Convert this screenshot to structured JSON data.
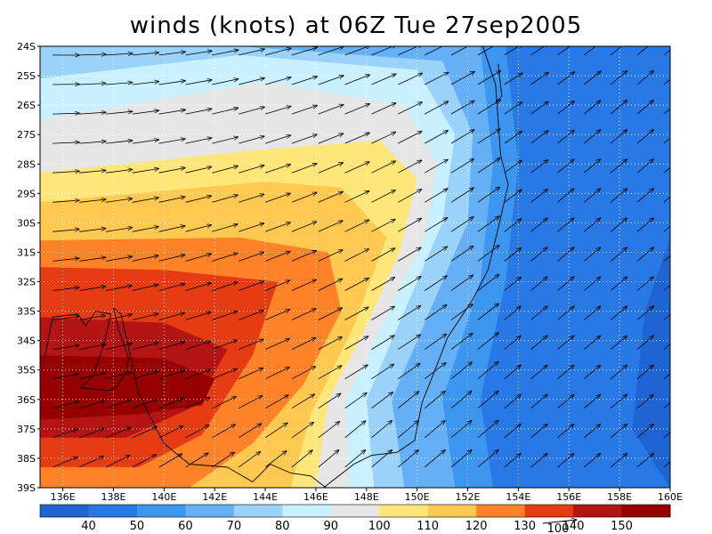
{
  "title": "winds (knots) at 06Z Tue 27sep2005",
  "chart_data": {
    "type": "heatmap",
    "variable": "wind speed",
    "units": "knots",
    "x_ticks": [
      "136E",
      "138E",
      "140E",
      "142E",
      "144E",
      "146E",
      "148E",
      "150E",
      "152E",
      "154E",
      "156E",
      "158E",
      "160E"
    ],
    "y_ticks": [
      "24S",
      "25S",
      "26S",
      "27S",
      "28S",
      "29S",
      "30S",
      "31S",
      "32S",
      "33S",
      "34S",
      "35S",
      "36S",
      "37S",
      "38S",
      "39S"
    ],
    "lon_range": [
      135.1,
      160
    ],
    "lat_range": [
      -39,
      -24
    ],
    "grid": "dotted",
    "colorbar": {
      "labels": [
        "40",
        "50",
        "60",
        "70",
        "80",
        "90",
        "100",
        "110",
        "120",
        "130",
        "140",
        "150"
      ],
      "colors": [
        "#1e64d2",
        "#2878e6",
        "#3c96f0",
        "#64aff5",
        "#9bd2fa",
        "#c8f0ff",
        "#e6e6e6",
        "#ffe678",
        "#ffc850",
        "#ff8228",
        "#e63c14",
        "#b41414",
        "#960000"
      ]
    },
    "vector_reference": {
      "label": "100",
      "speed_knots": 100
    },
    "contours_lon_lat": [
      {
        "level": 0,
        "points": [
          [
            135,
            -24
          ],
          [
            160,
            -24
          ],
          [
            160,
            -39
          ],
          [
            135,
            -39
          ]
        ]
      },
      {
        "level": 1,
        "points": [
          [
            153.5,
            -24
          ],
          [
            160,
            -24
          ],
          [
            160,
            -30.5
          ],
          [
            159,
            -33
          ],
          [
            158.5,
            -37
          ],
          [
            160,
            -39
          ],
          [
            153,
            -39
          ],
          [
            152.5,
            -36
          ],
          [
            153.5,
            -32
          ],
          [
            154,
            -28
          ]
        ]
      },
      {
        "level": 2,
        "points": [
          [
            135,
            -24
          ],
          [
            153.5,
            -24
          ],
          [
            154,
            -28
          ],
          [
            153.5,
            -32
          ],
          [
            152.5,
            -36
          ],
          [
            153,
            -39
          ],
          [
            135,
            -39
          ]
        ]
      },
      {
        "level": 3,
        "points": [
          [
            135,
            -24
          ],
          [
            152.5,
            -24
          ],
          [
            153,
            -28
          ],
          [
            152.5,
            -32
          ],
          [
            151,
            -36
          ],
          [
            151.5,
            -39
          ],
          [
            135,
            -39
          ]
        ]
      },
      {
        "level": 4,
        "points": [
          [
            135,
            -24
          ],
          [
            143,
            -24
          ],
          [
            151,
            -24.5
          ],
          [
            152.2,
            -27
          ],
          [
            152,
            -30
          ],
          [
            150.5,
            -33
          ],
          [
            149,
            -36
          ],
          [
            149.5,
            -39
          ],
          [
            135,
            -39
          ]
        ]
      },
      {
        "level": 5,
        "points": [
          [
            135,
            -25.1
          ],
          [
            143,
            -24.3
          ],
          [
            150,
            -24.8
          ],
          [
            151.5,
            -27
          ],
          [
            151,
            -30
          ],
          [
            149.5,
            -33
          ],
          [
            148,
            -36
          ],
          [
            148.3,
            -39
          ],
          [
            135,
            -39
          ]
        ]
      },
      {
        "level": 6,
        "points": [
          [
            135,
            -26.5
          ],
          [
            144,
            -25.2
          ],
          [
            149.5,
            -26
          ],
          [
            150.8,
            -28
          ],
          [
            150.3,
            -30.5
          ],
          [
            148.6,
            -33.5
          ],
          [
            147.2,
            -36
          ],
          [
            147.3,
            -39
          ],
          [
            135,
            -39
          ]
        ]
      },
      {
        "level": 7,
        "points": [
          [
            135,
            -28.3
          ],
          [
            144,
            -27.5
          ],
          [
            148.5,
            -27.2
          ],
          [
            150,
            -28.5
          ],
          [
            149.3,
            -31
          ],
          [
            148,
            -33.5
          ],
          [
            146.5,
            -36
          ],
          [
            146,
            -39
          ],
          [
            135,
            -39
          ]
        ]
      },
      {
        "level": 8,
        "points": [
          [
            135,
            -29.3
          ],
          [
            144,
            -28.6
          ],
          [
            147,
            -28.8
          ],
          [
            148.8,
            -30.5
          ],
          [
            147.5,
            -33.5
          ],
          [
            145.8,
            -36.5
          ],
          [
            145,
            -39
          ],
          [
            135,
            -39
          ]
        ]
      },
      {
        "level": 9,
        "points": [
          [
            135,
            -30.6
          ],
          [
            143,
            -30.5
          ],
          [
            146.5,
            -31
          ],
          [
            147,
            -33
          ],
          [
            145.5,
            -35.5
          ],
          [
            143.5,
            -37.5
          ],
          [
            141,
            -39
          ],
          [
            135,
            -39
          ]
        ]
      },
      {
        "level": 10,
        "points": [
          [
            135,
            -31.5
          ],
          [
            140,
            -31.6
          ],
          [
            144.5,
            -32
          ],
          [
            143.5,
            -34.5
          ],
          [
            141.5,
            -37.2
          ],
          [
            139,
            -38.3
          ],
          [
            135,
            -38.3
          ]
        ]
      },
      {
        "level": 11,
        "points": [
          [
            135,
            -33.2
          ],
          [
            140,
            -33.4
          ],
          [
            142.5,
            -34.3
          ],
          [
            141.3,
            -36.2
          ],
          [
            138.5,
            -37.3
          ],
          [
            135,
            -37.3
          ]
        ]
      },
      {
        "level": 12,
        "points": [
          [
            135,
            -34.5
          ],
          [
            140,
            -34.6
          ],
          [
            142,
            -35.3
          ],
          [
            141.5,
            -36.2
          ],
          [
            139,
            -36.5
          ],
          [
            135,
            -36.7
          ]
        ]
      }
    ],
    "coast_lon_lat": [
      [
        [
          152.6,
          -24
        ],
        [
          153.1,
          -25.3
        ],
        [
          153.2,
          -26.5
        ],
        [
          153.3,
          -27.7
        ],
        [
          153.6,
          -28.7
        ],
        [
          153.2,
          -30.2
        ],
        [
          152.8,
          -31.6
        ],
        [
          152.2,
          -32.6
        ],
        [
          151.2,
          -33.9
        ],
        [
          150.8,
          -34.8
        ],
        [
          150.2,
          -36.1
        ],
        [
          149.9,
          -37.4
        ],
        [
          149.2,
          -37.8
        ],
        [
          148.2,
          -37.9
        ],
        [
          147.5,
          -38.2
        ],
        [
          146.3,
          -39
        ]
      ],
      [
        [
          153.2,
          -24.6
        ],
        [
          153.35,
          -25.7
        ],
        [
          153.1,
          -25.9
        ]
      ],
      [
        [
          135.3,
          -34.5
        ],
        [
          135.6,
          -33.2
        ],
        [
          136.6,
          -33.1
        ],
        [
          136.9,
          -33.5
        ],
        [
          137.3,
          -33.0
        ],
        [
          137.9,
          -33.1
        ],
        [
          137.6,
          -34.2
        ],
        [
          137.2,
          -35.2
        ],
        [
          136.7,
          -35.6
        ],
        [
          137.8,
          -35.7
        ],
        [
          138.1,
          -35.6
        ],
        [
          138.5,
          -35.1
        ],
        [
          138.6,
          -34.6
        ],
        [
          138.2,
          -33.6
        ],
        [
          138.0,
          -32.9
        ],
        [
          138.3,
          -33.1
        ],
        [
          139.0,
          -35.8
        ],
        [
          140.0,
          -37.5
        ],
        [
          141.0,
          -38.2
        ],
        [
          142.5,
          -38.3
        ],
        [
          143.5,
          -38.8
        ],
        [
          144.2,
          -38.2
        ],
        [
          145.0,
          -38.5
        ],
        [
          145.8,
          -38.6
        ],
        [
          146.4,
          -39
        ]
      ]
    ]
  }
}
